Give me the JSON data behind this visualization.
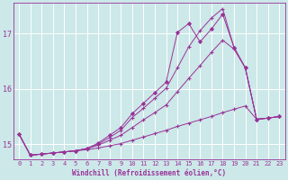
{
  "xlabel": "Windchill (Refroidissement éolien,°C)",
  "bg_color": "#cce8e8",
  "grid_color": "#ffffff",
  "line_color": "#993399",
  "xlim": [
    -0.5,
    23.5
  ],
  "ylim": [
    14.72,
    17.55
  ],
  "xticks": [
    0,
    1,
    2,
    3,
    4,
    5,
    6,
    7,
    8,
    9,
    10,
    11,
    12,
    13,
    14,
    15,
    16,
    17,
    18,
    19,
    20,
    21,
    22,
    23
  ],
  "yticks": [
    15,
    16,
    17
  ],
  "line1_x": [
    0,
    1,
    2,
    3,
    4,
    5,
    6,
    7,
    8,
    9,
    10,
    11,
    12,
    13,
    14,
    15,
    16,
    17,
    18,
    19,
    20,
    21,
    22,
    23
  ],
  "line1_y": [
    15.18,
    14.8,
    14.82,
    14.84,
    14.86,
    14.88,
    14.9,
    14.93,
    14.97,
    15.01,
    15.07,
    15.13,
    15.19,
    15.25,
    15.32,
    15.38,
    15.44,
    15.5,
    15.57,
    15.63,
    15.69,
    15.45,
    15.47,
    15.5
  ],
  "line2_x": [
    0,
    1,
    2,
    3,
    4,
    5,
    6,
    7,
    8,
    9,
    10,
    11,
    12,
    13,
    14,
    15,
    16,
    17,
    18,
    19,
    20,
    21,
    22,
    23
  ],
  "line2_y": [
    15.18,
    14.8,
    14.82,
    14.84,
    14.86,
    14.88,
    14.92,
    14.98,
    15.07,
    15.16,
    15.3,
    15.44,
    15.57,
    15.71,
    15.95,
    16.19,
    16.42,
    16.66,
    16.88,
    16.72,
    16.38,
    15.45,
    15.47,
    15.5
  ],
  "line3_x": [
    0,
    1,
    2,
    3,
    4,
    5,
    6,
    7,
    8,
    9,
    10,
    11,
    12,
    13,
    14,
    15,
    16,
    17,
    18,
    19,
    20,
    21,
    22,
    23
  ],
  "line3_y": [
    15.18,
    14.8,
    14.82,
    14.84,
    14.86,
    14.88,
    14.92,
    15.0,
    15.12,
    15.25,
    15.48,
    15.65,
    15.83,
    16.01,
    16.38,
    16.76,
    17.05,
    17.28,
    17.45,
    16.75,
    16.38,
    15.45,
    15.47,
    15.5
  ],
  "line4_x": [
    0,
    1,
    2,
    3,
    4,
    5,
    6,
    7,
    8,
    9,
    10,
    11,
    12,
    13,
    14,
    15,
    16,
    17,
    18,
    19,
    20,
    21,
    22,
    23
  ],
  "line4_y": [
    15.18,
    14.8,
    14.82,
    14.84,
    14.86,
    14.88,
    14.92,
    15.02,
    15.16,
    15.3,
    15.55,
    15.74,
    15.93,
    16.12,
    17.02,
    17.18,
    16.85,
    17.08,
    17.35,
    16.75,
    16.38,
    15.45,
    15.47,
    15.5
  ]
}
